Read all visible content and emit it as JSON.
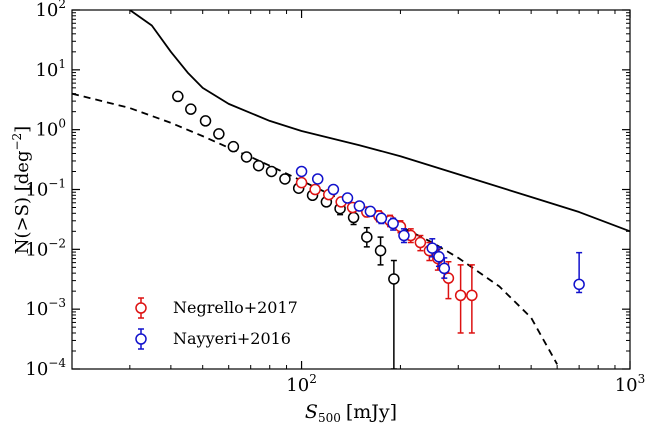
{
  "chart_data": {
    "type": "scatter",
    "xlabel": {
      "base": "S",
      "sub": "500",
      "unit": "[mJy]"
    },
    "ylabel": {
      "text": "N(>S) [deg",
      "sup": "−2",
      "close": "]"
    },
    "xscale": "log",
    "yscale": "log",
    "xlim": [
      20,
      1000
    ],
    "ylim": [
      0.0001,
      100
    ],
    "xticks": [
      {
        "value": 100,
        "base": "10",
        "exp": "2"
      },
      {
        "value": 1000,
        "base": "10",
        "exp": "3"
      }
    ],
    "yticks": [
      {
        "value": 0.0001,
        "base": "10",
        "exp": "−4"
      },
      {
        "value": 0.001,
        "base": "10",
        "exp": "−3"
      },
      {
        "value": 0.01,
        "base": "10",
        "exp": "−2"
      },
      {
        "value": 0.1,
        "base": "10",
        "exp": "−1"
      },
      {
        "value": 1,
        "base": "10",
        "exp": "0"
      },
      {
        "value": 10,
        "base": "10",
        "exp": "1"
      },
      {
        "value": 100,
        "base": "10",
        "exp": "2"
      }
    ],
    "grid": false,
    "legend_position": "bottom-left",
    "series": [
      {
        "key": "solid_model",
        "kind": "line",
        "style": "solid",
        "color": "#000000",
        "points": [
          [
            30,
            100
          ],
          [
            35,
            55
          ],
          [
            40,
            20
          ],
          [
            45,
            9
          ],
          [
            50,
            5
          ],
          [
            60,
            2.7
          ],
          [
            80,
            1.4
          ],
          [
            100,
            0.95
          ],
          [
            150,
            0.55
          ],
          [
            200,
            0.36
          ],
          [
            300,
            0.18
          ],
          [
            500,
            0.075
          ],
          [
            700,
            0.042
          ],
          [
            1000,
            0.02
          ]
        ]
      },
      {
        "key": "dashed_model",
        "kind": "line",
        "style": "dashed",
        "color": "#000000",
        "points": [
          [
            20,
            4
          ],
          [
            30,
            2.3
          ],
          [
            40,
            1.3
          ],
          [
            50,
            0.78
          ],
          [
            60,
            0.5
          ],
          [
            70,
            0.35
          ],
          [
            80,
            0.25
          ],
          [
            100,
            0.14
          ],
          [
            120,
            0.087
          ],
          [
            150,
            0.05
          ],
          [
            200,
            0.024
          ],
          [
            250,
            0.013
          ],
          [
            300,
            0.0072
          ],
          [
            400,
            0.0024
          ],
          [
            500,
            0.00072
          ],
          [
            600,
            0.00012
          ]
        ]
      },
      {
        "key": "black_points",
        "kind": "points",
        "color": "#000000",
        "points": [
          {
            "x": 42,
            "y": 3.6
          },
          {
            "x": 46,
            "y": 2.2
          },
          {
            "x": 51,
            "y": 1.4
          },
          {
            "x": 56,
            "y": 0.85
          },
          {
            "x": 62,
            "y": 0.52
          },
          {
            "x": 68,
            "y": 0.35
          },
          {
            "x": 74,
            "y": 0.25
          },
          {
            "x": 81,
            "y": 0.2
          },
          {
            "x": 89,
            "y": 0.15
          },
          {
            "x": 98,
            "y": 0.105
          },
          {
            "x": 108,
            "y": 0.08
          },
          {
            "x": 119,
            "y": 0.062
          },
          {
            "x": 131,
            "y": 0.048,
            "err_lo": 0.038,
            "err_hi": 0.06
          },
          {
            "x": 144,
            "y": 0.034,
            "err_lo": 0.026,
            "err_hi": 0.044
          },
          {
            "x": 158,
            "y": 0.016,
            "err_lo": 0.011,
            "err_hi": 0.023
          },
          {
            "x": 174,
            "y": 0.0095,
            "err_lo": 0.0055,
            "err_hi": 0.016
          },
          {
            "x": 191,
            "y": 0.0032,
            "err_lo": 0.0001,
            "err_hi": 0.0065
          }
        ]
      },
      {
        "key": "negrello",
        "kind": "points",
        "name": "Negrello+2017",
        "color": "#dd1111",
        "points": [
          {
            "x": 100,
            "y": 0.13
          },
          {
            "x": 110,
            "y": 0.1
          },
          {
            "x": 121,
            "y": 0.082
          },
          {
            "x": 132,
            "y": 0.062
          },
          {
            "x": 143,
            "y": 0.05,
            "err_lo": 0.042,
            "err_hi": 0.059
          },
          {
            "x": 158,
            "y": 0.042,
            "err_lo": 0.035,
            "err_hi": 0.05
          },
          {
            "x": 172,
            "y": 0.036,
            "err_lo": 0.029,
            "err_hi": 0.044
          },
          {
            "x": 186,
            "y": 0.03,
            "err_lo": 0.024,
            "err_hi": 0.037
          },
          {
            "x": 200,
            "y": 0.024,
            "err_lo": 0.019,
            "err_hi": 0.03
          },
          {
            "x": 215,
            "y": 0.017,
            "err_lo": 0.013,
            "err_hi": 0.022
          },
          {
            "x": 230,
            "y": 0.013,
            "err_lo": 0.0095,
            "err_hi": 0.017
          },
          {
            "x": 245,
            "y": 0.0095,
            "err_lo": 0.0065,
            "err_hi": 0.013
          },
          {
            "x": 260,
            "y": 0.007,
            "err_lo": 0.0045,
            "err_hi": 0.01
          },
          {
            "x": 280,
            "y": 0.0033,
            "err_lo": 0.0015,
            "err_hi": 0.0062
          },
          {
            "x": 305,
            "y": 0.0017,
            "err_lo": 0.0004,
            "err_hi": 0.0055
          },
          {
            "x": 330,
            "y": 0.0017,
            "err_lo": 0.0004,
            "err_hi": 0.0055
          }
        ]
      },
      {
        "key": "nayyeri",
        "kind": "points",
        "name": "Nayyeri+2016",
        "color": "#1111cc",
        "points": [
          {
            "x": 100,
            "y": 0.2
          },
          {
            "x": 112,
            "y": 0.15
          },
          {
            "x": 125,
            "y": 0.1
          },
          {
            "x": 138,
            "y": 0.072
          },
          {
            "x": 150,
            "y": 0.053,
            "err_lo": 0.046,
            "err_hi": 0.061
          },
          {
            "x": 162,
            "y": 0.043,
            "err_lo": 0.036,
            "err_hi": 0.05
          },
          {
            "x": 175,
            "y": 0.033,
            "err_lo": 0.027,
            "err_hi": 0.039
          },
          {
            "x": 190,
            "y": 0.027,
            "err_lo": 0.021,
            "err_hi": 0.033
          },
          {
            "x": 205,
            "y": 0.017,
            "err_lo": 0.013,
            "err_hi": 0.022
          },
          {
            "x": 250,
            "y": 0.0105,
            "err_lo": 0.0075,
            "err_hi": 0.015
          },
          {
            "x": 262,
            "y": 0.0075,
            "err_lo": 0.0052,
            "err_hi": 0.011
          },
          {
            "x": 272,
            "y": 0.0048,
            "err_lo": 0.0033,
            "err_hi": 0.0072
          },
          {
            "x": 700,
            "y": 0.0026,
            "err_lo": 0.0019,
            "err_hi": 0.0088
          }
        ]
      }
    ]
  }
}
